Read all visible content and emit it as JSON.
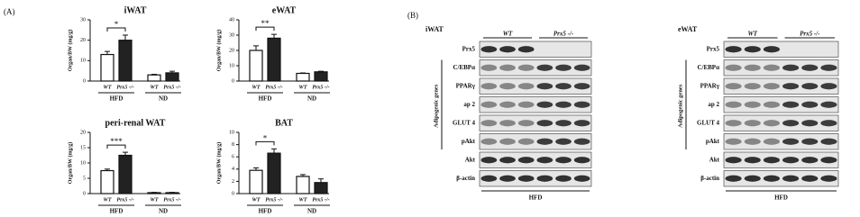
{
  "panel_a_label": "(A)",
  "chart_data": [
    {
      "type": "bar",
      "title": "iWAT",
      "ylabel": "Organ/BW (mg/g)",
      "categories": [
        "WT",
        "Prx5 -/-",
        "WT",
        "Prx5 -/-"
      ],
      "groups": [
        "HFD",
        "ND"
      ],
      "values": [
        13,
        20,
        3,
        4
      ],
      "errors": [
        1.5,
        2.5,
        0.3,
        0.8
      ],
      "colors": [
        "#ffffff",
        "#222222",
        "#ffffff",
        "#222222"
      ],
      "ylim": [
        0,
        30
      ],
      "yticks": [
        0,
        10,
        20,
        30
      ],
      "significance": "*"
    },
    {
      "type": "bar",
      "title": "eWAT",
      "ylabel": "Organ/BW (mg/g)",
      "categories": [
        "WT",
        "Prx5 -/-",
        "WT",
        "Prx5 -/-"
      ],
      "groups": [
        "HFD",
        "ND"
      ],
      "values": [
        20,
        28,
        5,
        6
      ],
      "errors": [
        3,
        2.5,
        0.3,
        0.4
      ],
      "colors": [
        "#ffffff",
        "#222222",
        "#ffffff",
        "#222222"
      ],
      "ylim": [
        0,
        40
      ],
      "yticks": [
        0,
        10,
        20,
        30,
        40
      ],
      "significance": "**"
    },
    {
      "type": "bar",
      "title": "peri-renal WAT",
      "ylabel": "Organ/BW (mg/g)",
      "categories": [
        "WT",
        "Prx5 -/-",
        "WT",
        "Prx5 -/-"
      ],
      "groups": [
        "HFD",
        "ND"
      ],
      "values": [
        7.5,
        12.5,
        0.3,
        0.3
      ],
      "errors": [
        0.5,
        1,
        0.1,
        0.1
      ],
      "colors": [
        "#ffffff",
        "#222222",
        "#ffffff",
        "#222222"
      ],
      "ylim": [
        0,
        20
      ],
      "yticks": [
        0,
        5,
        10,
        15,
        20
      ],
      "significance": "***"
    },
    {
      "type": "bar",
      "title": "BAT",
      "ylabel": "Organ/BW (mg/g)",
      "categories": [
        "WT",
        "Prx5 -/-",
        "WT",
        "Prx5 -/-"
      ],
      "groups": [
        "HFD",
        "ND"
      ],
      "values": [
        3.8,
        6.6,
        2.8,
        1.8
      ],
      "errors": [
        0.4,
        0.7,
        0.3,
        0.6
      ],
      "colors": [
        "#ffffff",
        "#222222",
        "#ffffff",
        "#222222"
      ],
      "ylim": [
        0,
        10
      ],
      "yticks": [
        0,
        2,
        4,
        6,
        8,
        10
      ],
      "significance": "*"
    }
  ],
  "panel_b": {
    "label": "(B)",
    "blots": [
      {
        "title": "iWAT",
        "groups": [
          "WT",
          "Prx5 -/-"
        ],
        "rows": [
          "Prx5",
          "C/EBPα",
          "PPARγ",
          "ap 2",
          "GLUT 4",
          "pAkt",
          "Akt",
          "β-actin"
        ],
        "side_label": "Adipogenic genes",
        "condition": "HFD"
      },
      {
        "title": "eWAT",
        "groups": [
          "WT",
          "Prx5 -/-"
        ],
        "rows": [
          "Prx5",
          "C/EBPα",
          "PPARγ",
          "ap 2",
          "GLUT 4",
          "pAkt",
          "Akt",
          "β-actin"
        ],
        "side_label": "Adipogenic genes",
        "condition": "HFD"
      }
    ]
  }
}
